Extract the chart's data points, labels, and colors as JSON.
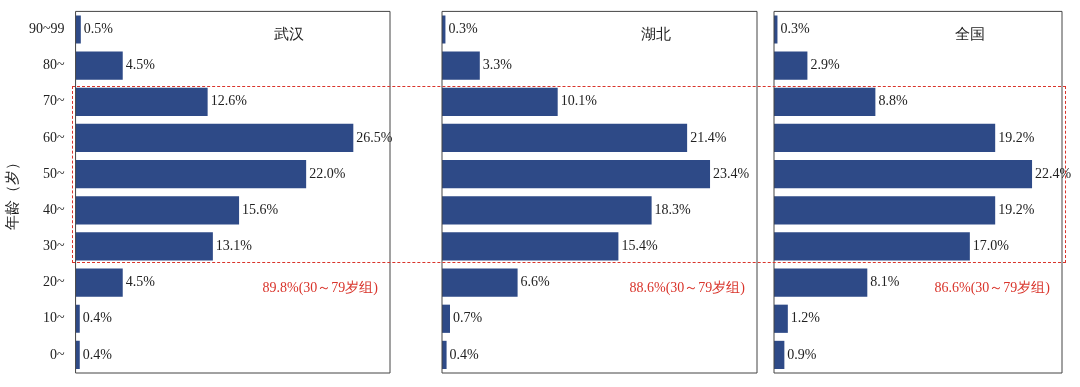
{
  "chart_data": [
    {
      "type": "bar",
      "orientation": "horizontal",
      "title": "武汉",
      "ylabel": "年龄（岁）",
      "tick_labels": "y",
      "categories": [
        "90~99",
        "80~",
        "70~",
        "60~",
        "50~",
        "40~",
        "30~",
        "20~",
        "10~",
        "0~"
      ],
      "values": [
        0.5,
        4.5,
        12.6,
        26.5,
        22.0,
        15.6,
        13.1,
        4.5,
        0.4,
        0.4
      ],
      "value_labels": [
        "0.5%",
        "4.5%",
        "12.6%",
        "26.5%",
        "22.0%",
        "15.6%",
        "13.1%",
        "4.5%",
        "0.4%",
        "0.4%"
      ],
      "color": "#2e4a87",
      "xlim": [
        0,
        30
      ],
      "annotations": [
        "89.8%(30～79岁组)"
      ]
    },
    {
      "type": "bar",
      "orientation": "horizontal",
      "title": "湖北",
      "categories": [
        null,
        null,
        null,
        null,
        null,
        null,
        null,
        null,
        null,
        null
      ],
      "values": [
        0.3,
        3.3,
        10.1,
        21.4,
        23.4,
        18.3,
        15.4,
        6.6,
        0.7,
        0.4
      ],
      "value_labels": [
        "0.3%",
        "3.3%",
        "10.1%",
        "21.4%",
        "23.4%",
        "18.3%",
        "15.4%",
        "6.6%",
        "0.7%",
        "0.4%"
      ],
      "color": "#2e4a87",
      "xlim": [
        0,
        27.5
      ],
      "annotations": [
        "88.6%(30～79岁组)"
      ]
    },
    {
      "type": "bar",
      "orientation": "horizontal",
      "title": "全国",
      "categories": [
        null,
        null,
        null,
        null,
        null,
        null,
        null,
        null,
        null,
        null
      ],
      "values": [
        0.3,
        2.9,
        8.8,
        19.2,
        22.4,
        19.2,
        17.0,
        8.1,
        1.2,
        0.9
      ],
      "value_labels": [
        "0.3%",
        "2.9%",
        "8.8%",
        "19.2%",
        "22.4%",
        "19.2%",
        "17.0%",
        "8.1%",
        "1.2%",
        "0.9%"
      ],
      "color": "#2e4a87",
      "xlim": [
        0,
        25
      ],
      "annotations": [
        "86.6%(30～79岁组)"
      ]
    }
  ]
}
